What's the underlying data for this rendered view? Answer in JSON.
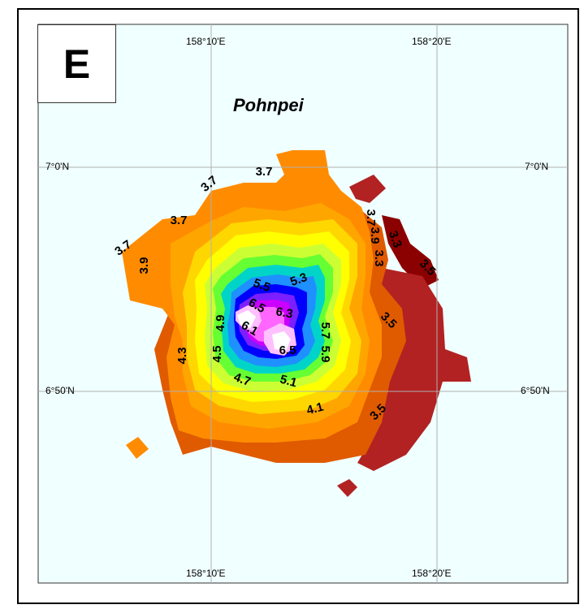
{
  "panel": {
    "letter": "E",
    "island_name": "Pohnpei"
  },
  "graticule": {
    "lon_top": [
      "158°10'E",
      "158°20'E"
    ],
    "lon_bottom": [
      "158°10'E",
      "158°20'E"
    ],
    "lat_left": [
      "7°0'N",
      "6°50'N"
    ],
    "lat_right": [
      "7°0'N",
      "6°50'N"
    ]
  },
  "colors": {
    "background": "#f0ffff",
    "grid": "#b0b0b0",
    "levels": [
      "#8b0000",
      "#b22222",
      "#e05a00",
      "#ff8c00",
      "#ffa500",
      "#ffd700",
      "#ffff00",
      "#ccff33",
      "#66ff33",
      "#00e676",
      "#00d4c8",
      "#1e90ff",
      "#0000ff",
      "#7b1fff",
      "#cc00ff",
      "#ff66ff",
      "#ffc0ff",
      "#ffffff"
    ]
  },
  "contour_labels": [
    {
      "text": "3.7"
    },
    {
      "text": "3.7"
    },
    {
      "text": "3.7"
    },
    {
      "text": "3.7"
    },
    {
      "text": "3.9"
    },
    {
      "text": "4.3"
    },
    {
      "text": "4.9"
    },
    {
      "text": "4.5"
    },
    {
      "text": "6.1"
    },
    {
      "text": "6.5"
    },
    {
      "text": "6.3"
    },
    {
      "text": "6.5"
    },
    {
      "text": "5.5"
    },
    {
      "text": "5.3"
    },
    {
      "text": "5.7"
    },
    {
      "text": "5.9"
    },
    {
      "text": "4.7"
    },
    {
      "text": "5.1"
    },
    {
      "text": "4.1"
    },
    {
      "text": "3.5"
    },
    {
      "text": "3.5"
    },
    {
      "text": "3.7"
    },
    {
      "text": "3.9"
    },
    {
      "text": "3.3"
    },
    {
      "text": "3.3"
    },
    {
      "text": "3.5"
    }
  ]
}
